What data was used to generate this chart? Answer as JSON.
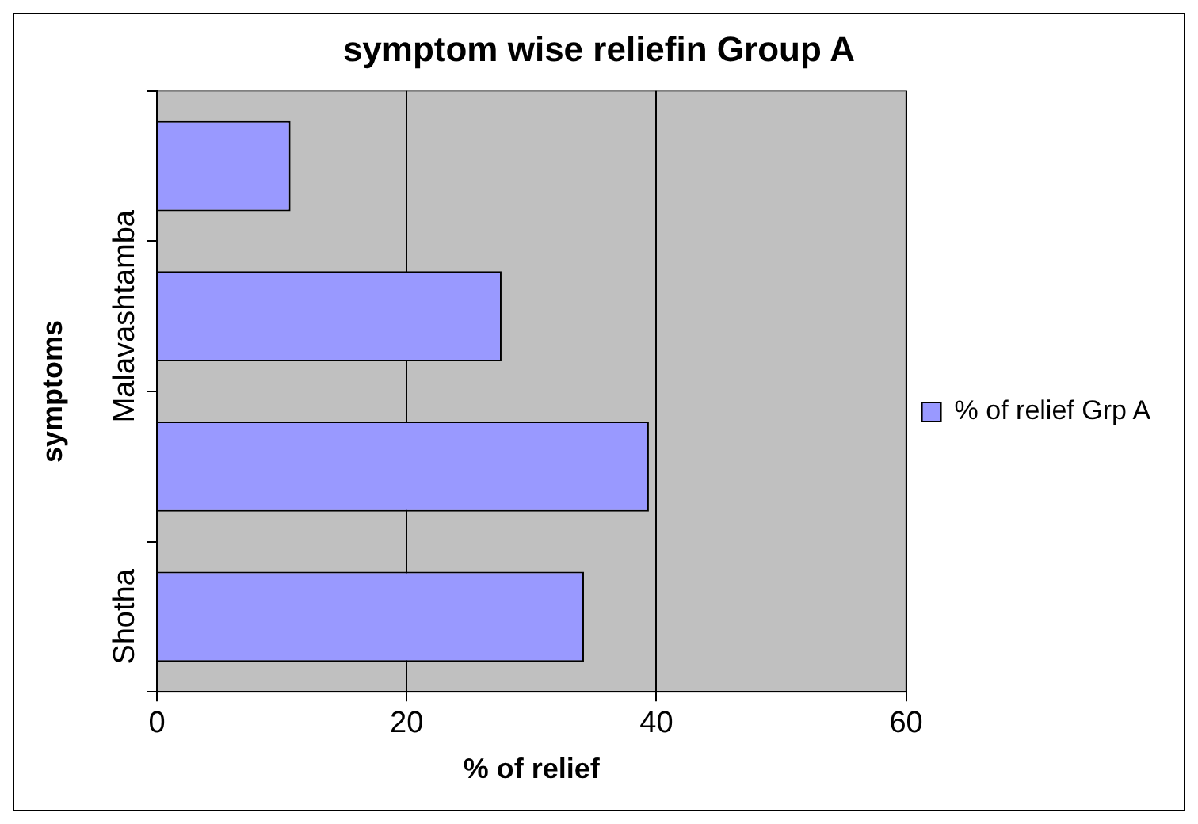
{
  "chart_data": {
    "type": "bar",
    "orientation": "horizontal",
    "title": "symptom wise reliefin Group A",
    "xlabel": "% of relief",
    "ylabel": "symptoms",
    "categories": [
      null,
      "Malavashtamba",
      null,
      "Shotha"
    ],
    "series": [
      {
        "name": "% of relief Grp A",
        "color": "#9999ff",
        "values": [
          10.7,
          27.6,
          39.4,
          34.2
        ]
      }
    ],
    "xlim": [
      0,
      60
    ],
    "xticks": [
      0,
      20,
      40,
      60
    ],
    "grid": "x",
    "legend": "right"
  }
}
